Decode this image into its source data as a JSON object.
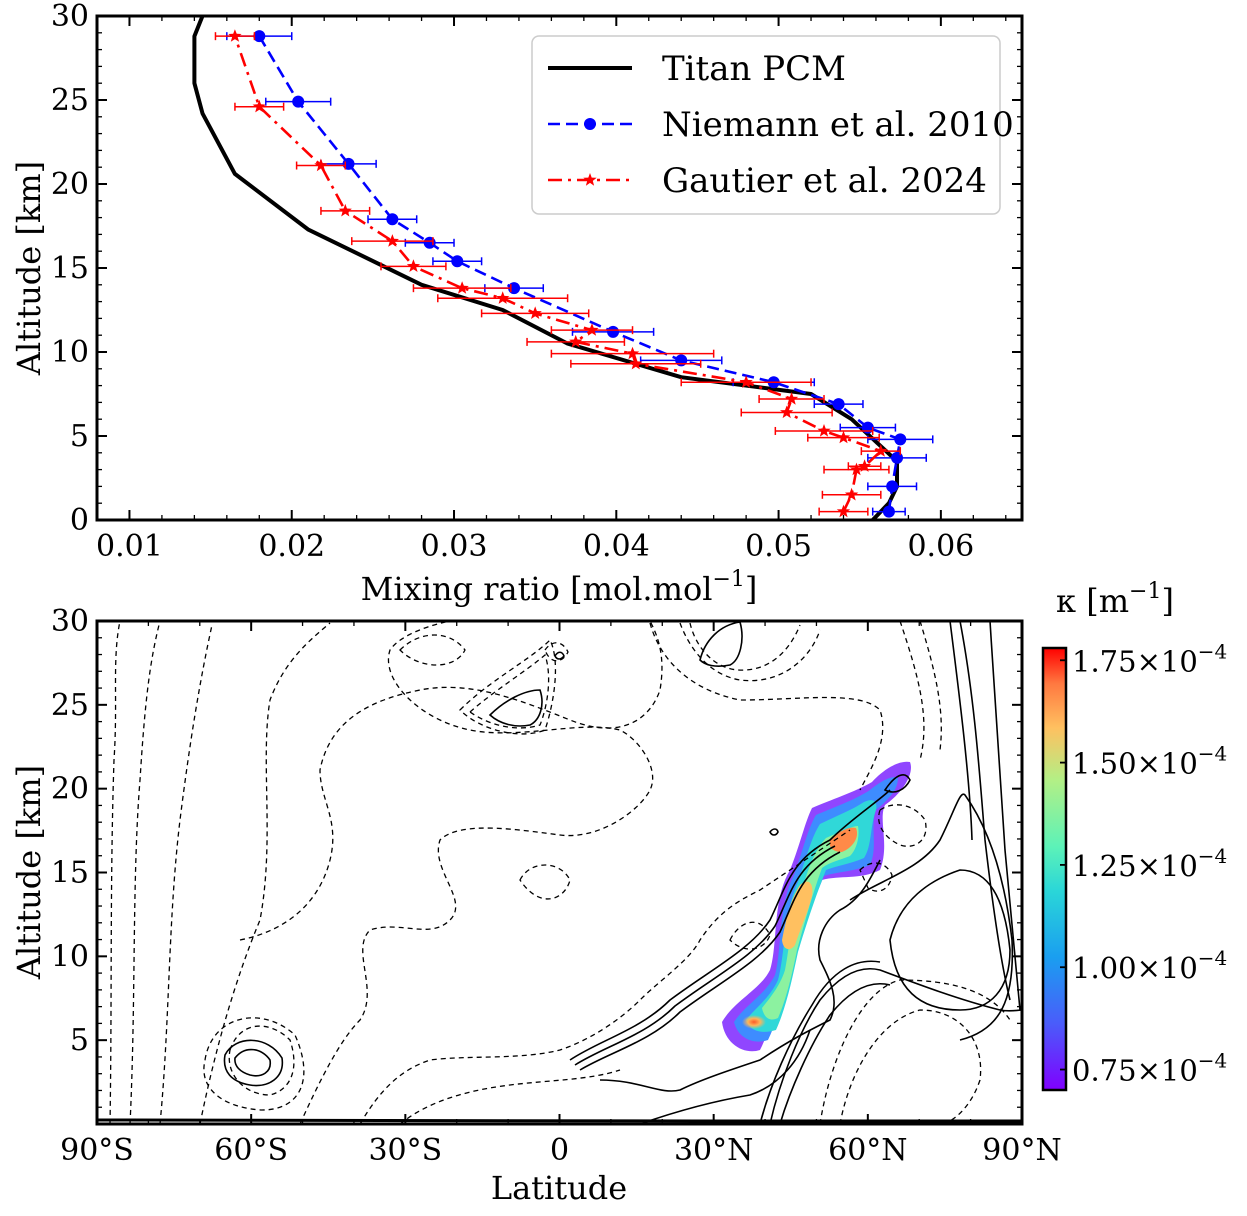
{
  "chart_data": [
    {
      "type": "line",
      "xlabel": "Mixing ratio [mol.mol",
      "xlabel_sup": "−1",
      "xlabel_end": "]",
      "ylabel": "Altitude [km]",
      "xlim": [
        0.008,
        0.065
      ],
      "ylim": [
        0,
        30
      ],
      "xticks": [
        0.01,
        0.02,
        0.03,
        0.04,
        0.05,
        0.06
      ],
      "xtick_labels": [
        "0.01",
        "0.02",
        "0.03",
        "0.04",
        "0.05",
        "0.06"
      ],
      "yticks": [
        0,
        5,
        10,
        15,
        20,
        25,
        30
      ],
      "ytick_labels": [
        "0",
        "5",
        "10",
        "15",
        "20",
        "25",
        "30"
      ],
      "legend_position": "top-right",
      "series": [
        {
          "name": "Titan PCM",
          "color": "#000000",
          "style": "solid",
          "marker": "none",
          "x": [
            0.0558,
            0.0568,
            0.0573,
            0.0573,
            0.0545,
            0.052,
            0.044,
            0.037,
            0.033,
            0.028,
            0.021,
            0.0165,
            0.0145,
            0.014,
            0.014,
            0.0145
          ],
          "y": [
            0,
            1,
            2,
            3.5,
            6,
            7.5,
            8.5,
            10.5,
            12.5,
            14,
            17.3,
            20.6,
            24.2,
            26,
            28.8,
            30
          ]
        },
        {
          "name": "Niemann et al. 2010",
          "color": "#0000ff",
          "style": "dashed",
          "marker": "circle",
          "x": [
            0.0568,
            0.057,
            0.0573,
            0.0575,
            0.0555,
            0.0537,
            0.0497,
            0.044,
            0.0398,
            0.0337,
            0.0302,
            0.0285,
            0.0262,
            0.0235,
            0.0204,
            0.018
          ],
          "y": [
            0.5,
            2,
            3.7,
            4.8,
            5.5,
            6.9,
            8.2,
            9.5,
            11.2,
            13.8,
            15.4,
            16.5,
            17.9,
            21.2,
            24.9,
            28.8
          ],
          "xerr": [
            0.001,
            0.0015,
            0.0018,
            0.002,
            0.0017,
            0.0015,
            0.0025,
            0.0025,
            0.0025,
            0.0018,
            0.0015,
            0.0015,
            0.0015,
            0.0017,
            0.002,
            0.002
          ]
        },
        {
          "name": "Gautier et al. 2024",
          "color": "#ff0000",
          "style": "dashdot",
          "marker": "star",
          "x": [
            0.054,
            0.0545,
            0.0548,
            0.0553,
            0.0563,
            0.054,
            0.0528,
            0.0505,
            0.0508,
            0.048,
            0.0412,
            0.041,
            0.0375,
            0.0385,
            0.035,
            0.033,
            0.0305,
            0.0275,
            0.0262,
            0.0233,
            0.0218,
            0.018,
            0.0165
          ],
          "y": [
            0.5,
            1.5,
            3,
            3.2,
            4.1,
            4.9,
            5.3,
            6.4,
            7.2,
            8.2,
            9.3,
            9.9,
            10.6,
            11.3,
            12.3,
            13.2,
            13.8,
            15.1,
            16.6,
            18.4,
            21.1,
            24.6,
            28.8
          ],
          "xerr": [
            0.0015,
            0.0018,
            0.002,
            0.001,
            0.0012,
            0.0022,
            0.003,
            0.0028,
            0.002,
            0.004,
            0.004,
            0.005,
            0.003,
            0.0025,
            0.0033,
            0.004,
            0.003,
            0.002,
            0.0025,
            0.0015,
            0.0015,
            0.0015,
            0.0012
          ]
        }
      ]
    },
    {
      "type": "heatmap",
      "xlabel": "Latitude",
      "ylabel": "Altitude [km]",
      "xlim": [
        -90,
        90
      ],
      "ylim": [
        0,
        30
      ],
      "xticks": [
        -90,
        -60,
        -30,
        0,
        30,
        60,
        90
      ],
      "xtick_labels": [
        "90°S",
        "60°S",
        "30°S",
        "0",
        "30°N",
        "60°N",
        "90°N"
      ],
      "yticks": [
        5,
        10,
        15,
        20,
        25,
        30
      ],
      "ytick_labels": [
        "5",
        "10",
        "15",
        "20",
        "25",
        "30"
      ],
      "colorbar_label": "κ [m",
      "colorbar_label_sup": "−1",
      "colorbar_label_end": "]",
      "colorbar_range": [
        7e-05,
        0.000178
      ],
      "colorbar_ticks": [
        7.5e-05,
        0.0001,
        0.000125,
        0.00015,
        0.000175
      ],
      "colorbar_tick_mantissas": [
        "0.75",
        "1.00",
        "1.25",
        "1.50",
        "1.75"
      ],
      "colorbar_tick_exponent": "−4",
      "colorbar_tick_base": "×10",
      "colormap": "rainbow",
      "colored_region_peak_latitudes": [
        50,
        55,
        40
      ],
      "colored_region_peak_altitudes": [
        11.5,
        16.5,
        6
      ],
      "contours": "black solid and dashed isolines"
    }
  ]
}
